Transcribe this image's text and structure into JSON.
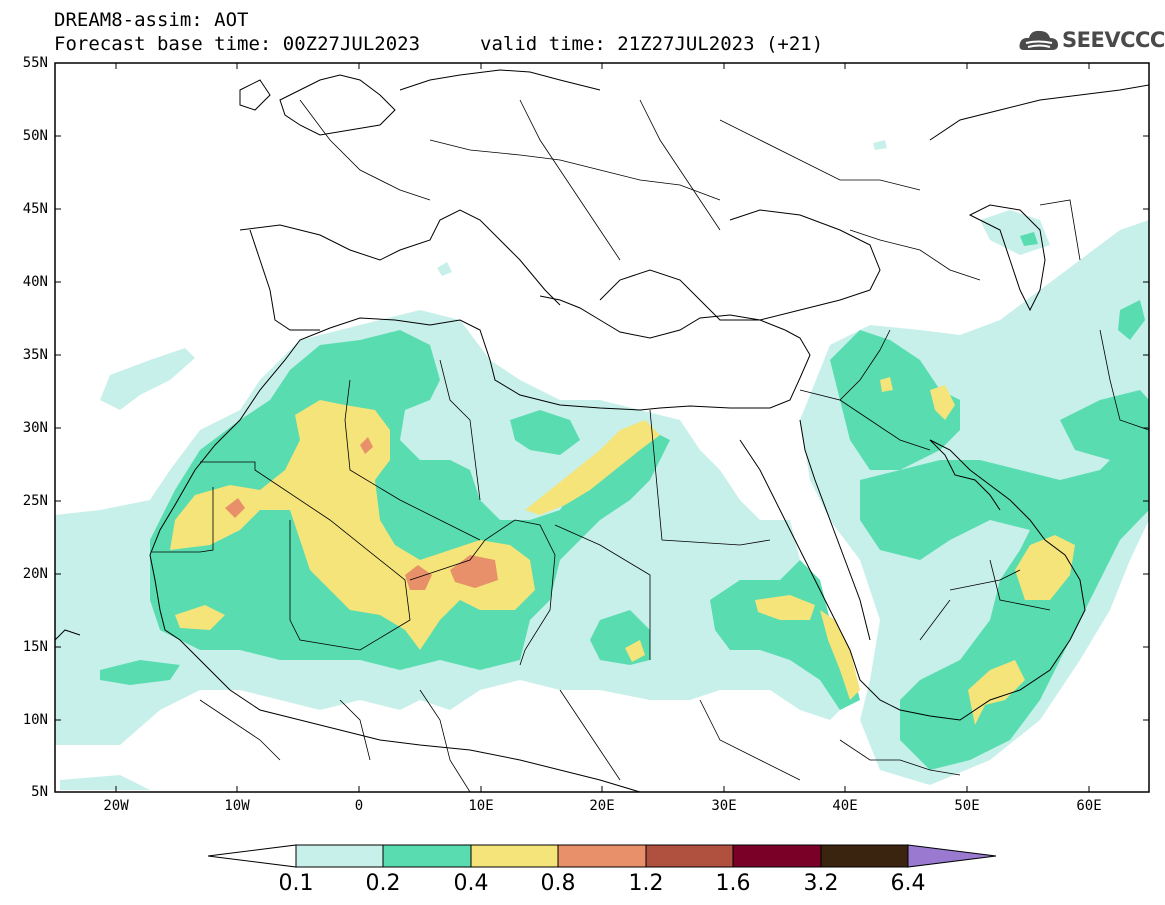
{
  "title": {
    "line1": "DREAM8-assim: AOT",
    "base_time": "Forecast base time: 00Z27JUL2023",
    "valid_time": "valid time: 21Z27JUL2023 (+21)"
  },
  "logo": {
    "text": "SEEVCCC",
    "icon": "cloud-icon"
  },
  "lat_labels": [
    "55N",
    "50N",
    "45N",
    "40N",
    "35N",
    "30N",
    "25N",
    "20N",
    "15N",
    "10N",
    "5N"
  ],
  "lon_labels": [
    "20W",
    "10W",
    "0",
    "10E",
    "20E",
    "30E",
    "40E",
    "50E",
    "60E"
  ],
  "colorbar": {
    "labels": [
      "0.1",
      "0.2",
      "0.4",
      "0.8",
      "1.2",
      "1.6",
      "3.2",
      "6.4"
    ],
    "colors": [
      "#ffffff",
      "#c8f0ea",
      "#58dcb0",
      "#f4e47a",
      "#e8906a",
      "#b0503e",
      "#7a0028",
      "#3a2410",
      "#9a7ad0"
    ]
  },
  "colors": {
    "aot_0_1": "#c8f0ea",
    "aot_0_2": "#58dcb0",
    "aot_0_4": "#f4e47a",
    "aot_0_8": "#e8906a"
  }
}
